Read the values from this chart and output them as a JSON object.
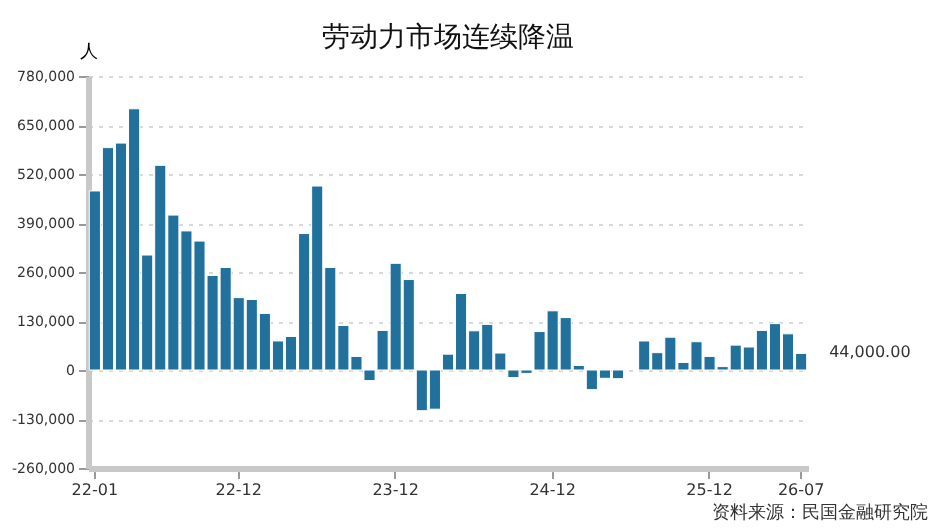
{
  "chart_data": {
    "type": "bar",
    "title": "劳动力市场连续降温",
    "ylabel": "人",
    "categories": [
      "22-01",
      null,
      null,
      null,
      null,
      null,
      null,
      null,
      null,
      null,
      null,
      "22-12",
      null,
      null,
      null,
      null,
      null,
      null,
      null,
      null,
      null,
      null,
      null,
      "23-12",
      null,
      null,
      null,
      null,
      null,
      null,
      null,
      null,
      null,
      null,
      null,
      "24-12",
      null,
      null,
      null,
      null,
      null,
      null,
      null,
      null,
      null,
      null,
      null,
      "25-12",
      null,
      null,
      null,
      null,
      null,
      null,
      "26-07"
    ],
    "values": [
      475000,
      590000,
      602000,
      693000,
      305000,
      543000,
      411000,
      369000,
      342000,
      251000,
      272000,
      192000,
      187000,
      150000,
      77000,
      89000,
      362000,
      488000,
      272000,
      118000,
      36000,
      -28000,
      105000,
      283000,
      240000,
      -108000,
      -104000,
      42000,
      203000,
      104000,
      121000,
      45000,
      -20000,
      -9000,
      102000,
      157000,
      139000,
      12000,
      -52000,
      -22000,
      -23000,
      null,
      77000,
      46000,
      87000,
      20000,
      75000,
      36000,
      9000,
      66000,
      61000,
      105000,
      123000,
      96000,
      44000
    ],
    "color": "#22709c",
    "ylim": [
      -260000,
      780000
    ],
    "yticks": [
      {
        "value": -260000,
        "label": "-260,000"
      },
      {
        "value": -130000,
        "label": "-130,000"
      },
      0,
      {
        "value": 130000,
        "label": "130,000"
      },
      {
        "value": 260000,
        "label": "260,000"
      },
      {
        "value": 390000,
        "label": "390,000"
      },
      {
        "value": 520000,
        "label": "520,000"
      },
      {
        "value": 650000,
        "label": "650,000"
      },
      {
        "value": 780000,
        "label": "780,000"
      }
    ],
    "grid": "y",
    "annotations": [
      {
        "text": "44,000.00",
        "x": "26-07",
        "y": 44000
      },
      "资料来源：民国金融研究院"
    ]
  }
}
